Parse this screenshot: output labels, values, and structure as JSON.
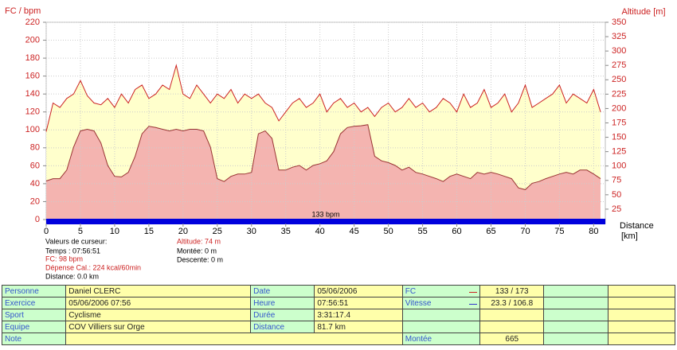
{
  "chart_data": {
    "type": "line",
    "ylabel": "FC / bpm",
    "y2label": "Altitude [m]",
    "xlabel": "Distance",
    "xunit": "[km]",
    "annotation": "133 bpm",
    "x": [
      0,
      1,
      2,
      3,
      4,
      5,
      6,
      7,
      8,
      9,
      10,
      11,
      12,
      13,
      14,
      15,
      16,
      17,
      18,
      19,
      20,
      21,
      22,
      23,
      24,
      25,
      26,
      27,
      28,
      29,
      30,
      31,
      32,
      33,
      34,
      35,
      36,
      37,
      38,
      39,
      40,
      41,
      42,
      43,
      44,
      45,
      46,
      47,
      48,
      49,
      50,
      51,
      52,
      53,
      54,
      55,
      56,
      57,
      58,
      59,
      60,
      61,
      62,
      63,
      64,
      65,
      66,
      67,
      68,
      69,
      70,
      71,
      72,
      73,
      74,
      75,
      76,
      77,
      78,
      79,
      80,
      81
    ],
    "series": [
      {
        "color": "#cc2222",
        "fill": "#ffffcc",
        "values": [
          98,
          130,
          125,
          135,
          140,
          155,
          138,
          130,
          128,
          135,
          125,
          140,
          130,
          145,
          150,
          135,
          140,
          150,
          145,
          172,
          140,
          135,
          150,
          140,
          130,
          140,
          135,
          145,
          130,
          140,
          135,
          140,
          130,
          125,
          110,
          120,
          130,
          135,
          125,
          130,
          140,
          120,
          130,
          135,
          125,
          130,
          120,
          125,
          115,
          125,
          130,
          120,
          125,
          135,
          125,
          130,
          120,
          125,
          135,
          130,
          120,
          140,
          125,
          130,
          145,
          125,
          130,
          140,
          120,
          130,
          150,
          125,
          130,
          135,
          140,
          150,
          130,
          140,
          135,
          130,
          145,
          120
        ]
      },
      {
        "axis": "y2",
        "color": "#993333",
        "fill": "#f4b4b0",
        "values": [
          74,
          78,
          78,
          93,
          133,
          161,
          164,
          161,
          140,
          101,
          82,
          81,
          89,
          117,
          156,
          169,
          167,
          164,
          161,
          164,
          161,
          164,
          164,
          161,
          133,
          78,
          73,
          82,
          86,
          86,
          89,
          156,
          161,
          148,
          93,
          93,
          98,
          101,
          93,
          101,
          104,
          109,
          125,
          156,
          167,
          169,
          170,
          172,
          117,
          109,
          106,
          101,
          93,
          98,
          89,
          86,
          82,
          78,
          73,
          82,
          86,
          82,
          78,
          89,
          86,
          89,
          86,
          82,
          78,
          62,
          59,
          70,
          73,
          78,
          82,
          86,
          89,
          86,
          93,
          93,
          86,
          78
        ]
      }
    ],
    "xlim": [
      0,
      81.7
    ],
    "xticks": [
      0,
      5,
      10,
      15,
      20,
      25,
      30,
      35,
      40,
      45,
      50,
      55,
      60,
      65,
      70,
      75,
      80
    ],
    "ylim": [
      0,
      220
    ],
    "yticks": [
      0,
      20,
      40,
      60,
      80,
      100,
      120,
      140,
      160,
      180,
      200,
      220
    ],
    "y2lim": [
      0,
      350
    ],
    "y2ticks": [
      25,
      50,
      75,
      100,
      125,
      150,
      175,
      200,
      225,
      250,
      275,
      300,
      325,
      350
    ],
    "grid": true
  },
  "cursor": {
    "title": "Valeurs de curseur:",
    "time": "Temps : 07:56:51",
    "fc": "FC: 98 bpm",
    "calories": "Dépense Cal.: 224 kcal/60min",
    "distance": "Distance: 0.0 km",
    "altitude": "Altitude: 74 m",
    "ascent": "Montée: 0 m",
    "descent": "Descente: 0 m"
  },
  "table": {
    "rows": [
      [
        "Personne",
        "Daniel CLERC",
        "Date",
        "05/06/2006",
        "FC",
        "133 / 173"
      ],
      [
        "Exercice",
        "05/06/2006 07:56",
        "Heure",
        "07:56:51",
        "Vitesse",
        "23.3 / 106.8"
      ],
      [
        "Sport",
        "Cyclisme",
        "Durée",
        "3:31:17.4",
        null,
        null
      ],
      [
        "Equipe",
        "COV Villiers sur Orge",
        "Distance",
        "81.7 km",
        null,
        null
      ],
      [
        "Note",
        null,
        null,
        null,
        "Montée",
        "665"
      ]
    ],
    "markers": [
      "#cc2222",
      "#3333cc",
      null,
      null,
      null
    ]
  }
}
